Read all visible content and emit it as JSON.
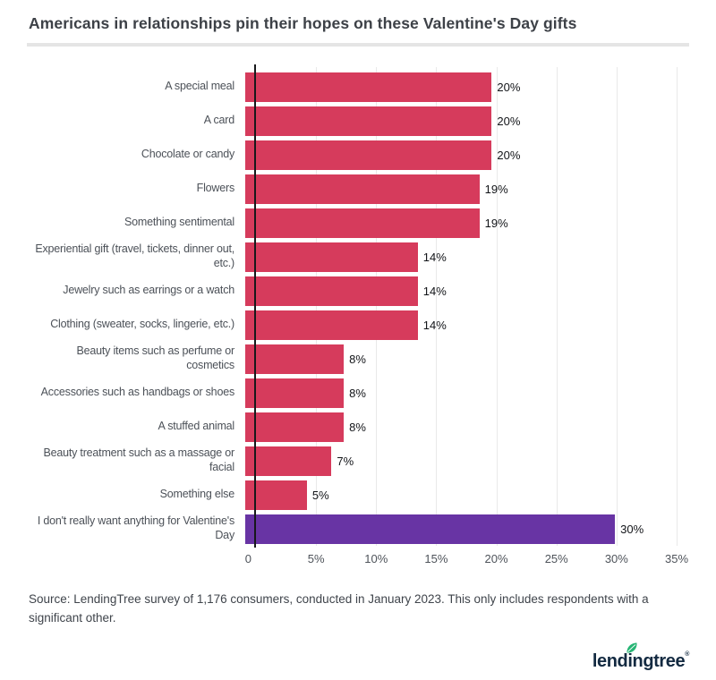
{
  "page": {
    "title": "Americans in relationships pin their hopes on these Valentine's Day gifts",
    "source_note": "Source: LendingTree survey of 1,176 consumers, conducted in January 2023. This only includes respondents with a significant other.",
    "logo_text": "lendingtree",
    "registered_mark": "®",
    "brand_colors": {
      "logo_navy": "#132a41",
      "leaf_green": "#26b574"
    }
  },
  "chart_data": {
    "type": "bar",
    "orientation": "horizontal",
    "title": "Americans in relationships pin their hopes on these Valentine's Day gifts",
    "categories": [
      "A special meal",
      "A card",
      "Chocolate or candy",
      "Flowers",
      "Something sentimental",
      "Experiential gift (travel, tickets, dinner out, etc.)",
      "Jewelry such as earrings or a watch",
      "Clothing (sweater, socks, lingerie, etc.)",
      "Beauty items such as perfume or cosmetics",
      "Accessories such as handbags or shoes",
      "A stuffed animal",
      "Beauty treatment such as a massage or facial",
      "Something else",
      "I don't really want anything for Valentine's Day"
    ],
    "values": [
      20,
      20,
      20,
      19,
      19,
      14,
      14,
      14,
      8,
      8,
      8,
      7,
      5,
      30
    ],
    "value_labels": [
      "20%",
      "20%",
      "20%",
      "19%",
      "19%",
      "14%",
      "14%",
      "14%",
      "8%",
      "8%",
      "8%",
      "7%",
      "5%",
      "30%"
    ],
    "xlabel": "",
    "ylabel": "",
    "xlim": [
      0,
      35
    ],
    "x_ticks": [
      "0",
      "5%",
      "10%",
      "15%",
      "20%",
      "25%",
      "30%",
      "35%"
    ],
    "grid": "vertical",
    "legend": "none",
    "bar_colors": {
      "default": "#d63b5c",
      "highlight": "#6834a4"
    },
    "highlight_index": 13
  }
}
